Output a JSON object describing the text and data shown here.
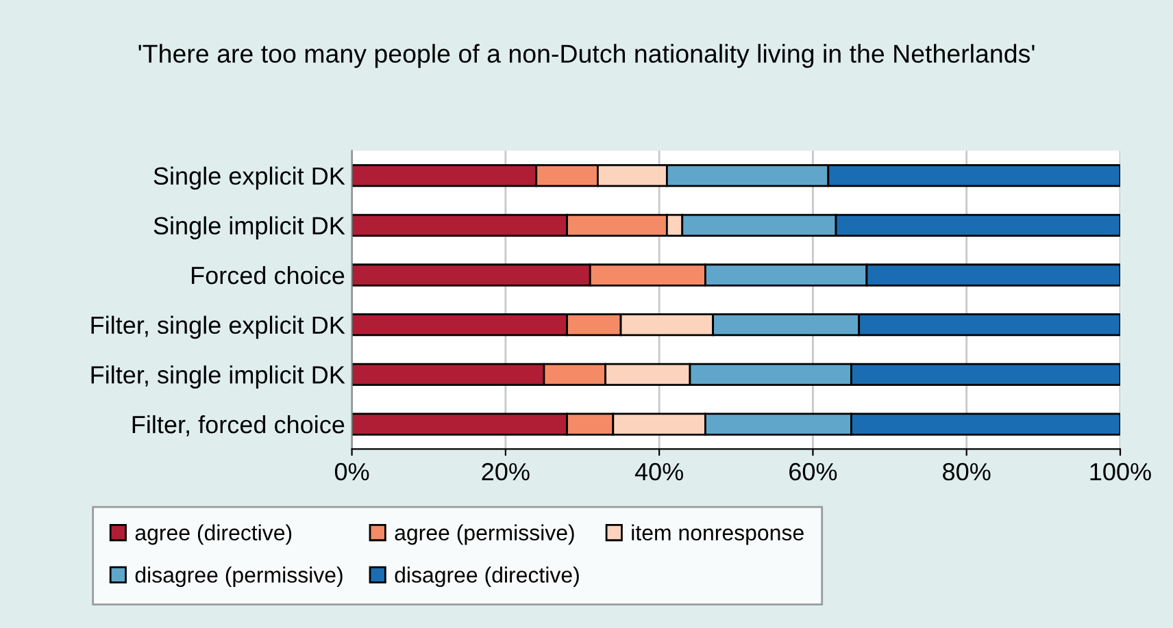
{
  "chart_data": {
    "type": "bar",
    "orientation": "horizontal",
    "stacked": true,
    "title": "'There are too many people of a non-Dutch nationality living in the Netherlands'",
    "categories": [
      "Single explicit DK",
      "Single implicit DK",
      "Forced choice",
      "Filter, single explicit DK",
      "Filter, single implicit DK",
      "Filter, forced choice"
    ],
    "series": [
      {
        "name": "agree (directive)",
        "color": "#b01e35",
        "values": [
          24,
          28,
          31,
          28,
          25,
          28
        ]
      },
      {
        "name": "agree (permissive)",
        "color": "#f48b66",
        "values": [
          8,
          13,
          15,
          7,
          8,
          6
        ]
      },
      {
        "name": "item nonresponse",
        "color": "#fcd4bd",
        "values": [
          9,
          2,
          0,
          12,
          11,
          12
        ]
      },
      {
        "name": "disagree (permissive)",
        "color": "#60a6cb",
        "values": [
          21,
          20,
          21,
          19,
          21,
          19
        ]
      },
      {
        "name": "disagree (directive)",
        "color": "#1a6db3",
        "values": [
          38,
          37,
          33,
          34,
          35,
          35
        ]
      }
    ],
    "xlim": [
      0,
      100
    ],
    "xticks": [
      {
        "value": 0,
        "label": "0%"
      },
      {
        "value": 20,
        "label": "20%"
      },
      {
        "value": 40,
        "label": "40%"
      },
      {
        "value": 60,
        "label": "60%"
      },
      {
        "value": 80,
        "label": "80%"
      },
      {
        "value": 100,
        "label": "100%"
      }
    ],
    "grid": "x",
    "legend": "bottom"
  }
}
